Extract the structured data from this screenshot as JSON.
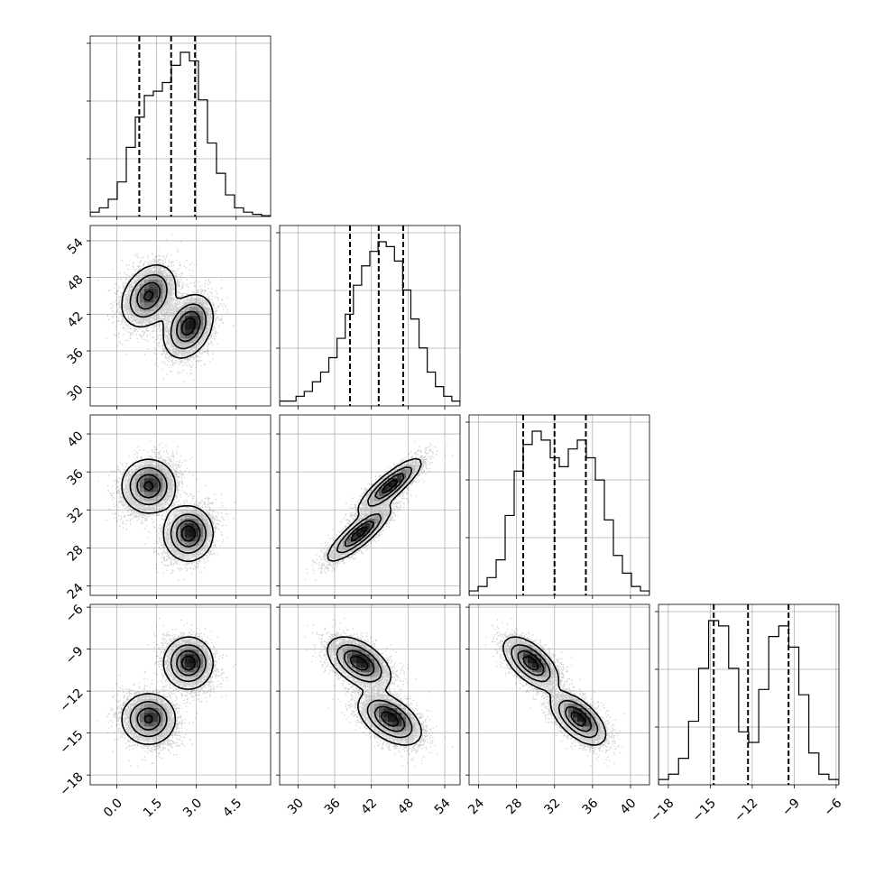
{
  "chart_data": {
    "type": "corner",
    "parameters": [
      {
        "range": [
          -1.0,
          5.8
        ],
        "ticks": [
          "0.0",
          "1.5",
          "3.0",
          "4.5"
        ],
        "tick_values": [
          0.0,
          1.5,
          3.0,
          4.5
        ],
        "quantiles": [
          0.85,
          2.05,
          2.95
        ]
      },
      {
        "range": [
          27.0,
          56.5
        ],
        "ticks": [
          "30",
          "36",
          "42",
          "48",
          "54"
        ],
        "tick_values": [
          30,
          36,
          42,
          48,
          54
        ],
        "quantiles": [
          38.5,
          43.2,
          47.2
        ]
      },
      {
        "range": [
          23.0,
          42.0
        ],
        "ticks": [
          "24",
          "28",
          "32",
          "36",
          "40"
        ],
        "tick_values": [
          24,
          28,
          32,
          36,
          40
        ],
        "quantiles": [
          28.7,
          32.0,
          35.3
        ]
      },
      {
        "range": [
          -18.7,
          -5.8
        ],
        "ticks": [
          "-18",
          "-15",
          "-12",
          "-9",
          "-6"
        ],
        "tick_values": [
          -18,
          -15,
          -12,
          -9,
          -6
        ],
        "quantiles": [
          -14.75,
          -12.3,
          -9.4
        ]
      }
    ],
    "histograms": [
      {
        "counts": [
          1,
          2,
          4,
          8,
          16,
          23,
          28,
          29,
          31,
          35,
          38,
          36,
          27,
          17,
          10,
          5,
          2,
          1,
          0.5,
          0.2
        ]
      },
      {
        "counts": [
          1,
          1,
          2,
          3,
          5,
          7,
          10,
          14,
          19,
          25,
          29,
          32,
          34,
          33,
          30,
          24,
          18,
          12,
          7,
          4,
          2,
          1
        ]
      },
      {
        "counts": [
          1,
          2,
          4,
          8,
          18,
          28,
          34,
          37,
          35,
          31,
          29,
          33,
          35,
          31,
          26,
          17,
          9,
          5,
          2,
          1
        ]
      },
      {
        "counts": [
          1,
          2,
          5,
          12,
          22,
          31,
          30,
          22,
          10,
          8,
          18,
          28,
          30,
          26,
          17,
          6,
          2,
          1
        ]
      }
    ],
    "modes": [
      {
        "weight": 0.5,
        "mean": [
          1.2,
          45.0,
          34.5,
          -14.0
        ],
        "sd": [
          0.5,
          2.5,
          1.4,
          0.9
        ]
      },
      {
        "weight": 0.5,
        "mean": [
          2.7,
          40.0,
          29.5,
          -10.0
        ],
        "sd": [
          0.45,
          2.5,
          1.4,
          0.9
        ]
      }
    ],
    "scatter_points": 9000
  }
}
